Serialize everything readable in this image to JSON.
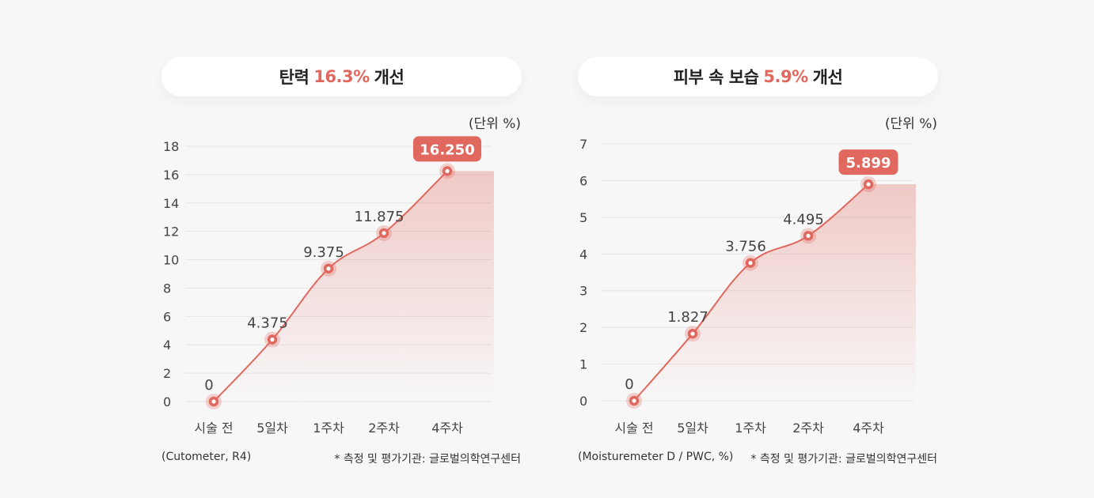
{
  "accent_color": "#e0685e",
  "chart_data": [
    {
      "type": "line",
      "title_prefix": "탄력",
      "title_highlight": "16.3%",
      "title_suffix": "개선",
      "unit_label": "(단위 %)",
      "categories": [
        "시술 전",
        "5일차",
        "1주차",
        "2주차",
        "4주차"
      ],
      "values": [
        0,
        4.375,
        9.375,
        11.875,
        16.25
      ],
      "value_labels": [
        "0",
        "4.375",
        "9.375",
        "11.875",
        "16.250"
      ],
      "yticks": [
        "0",
        "2",
        "4",
        "6",
        "8",
        "10",
        "12",
        "14",
        "16",
        "18"
      ],
      "ylim": [
        0,
        18
      ],
      "grid": true,
      "footnote_source": "(Cutometer, R4)",
      "footnote_org": "* 측정 및 평가기관: 글로벌의학연구센터"
    },
    {
      "type": "line",
      "title_prefix": "피부 속 보습",
      "title_highlight": "5.9%",
      "title_suffix": "개선",
      "unit_label": "(단위 %)",
      "categories": [
        "시술 전",
        "5일차",
        "1주차",
        "2주차",
        "4주차"
      ],
      "values": [
        0,
        1.827,
        3.756,
        4.495,
        5.899
      ],
      "value_labels": [
        "0",
        "1.827",
        "3.756",
        "4.495",
        "5.899"
      ],
      "yticks": [
        "0",
        "1",
        "2",
        "3",
        "4",
        "5",
        "6",
        "7"
      ],
      "ylim": [
        0,
        7
      ],
      "grid": true,
      "footnote_source": "(Moisturemeter D / PWC, %)",
      "footnote_org": "* 측정 및 평가기관: 글로벌의학연구센터"
    }
  ]
}
